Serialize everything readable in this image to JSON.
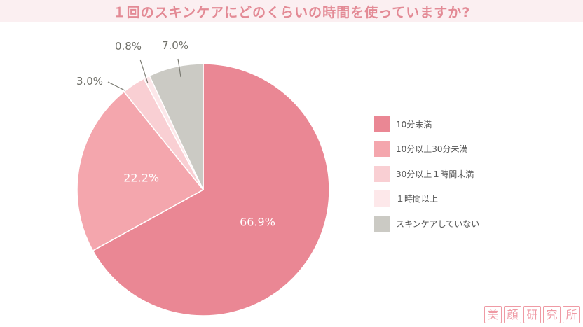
{
  "title": "１回のスキンケアにどのくらいの時間を使っていますか?",
  "chart_data": {
    "type": "pie",
    "title": "１回のスキンケアにどのくらいの時間を使っていますか?",
    "start_angle": "12 o'clock, clockwise",
    "slices": [
      {
        "label": "10分未満",
        "value": 66.9,
        "value_label": "66.9%",
        "color": "#ea8794",
        "label_placement": "inside"
      },
      {
        "label": "10分以上30分未満",
        "value": 22.2,
        "value_label": "22.2%",
        "color": "#f4a6ad",
        "label_placement": "inside"
      },
      {
        "label": "30分以上１時間未満",
        "value": 3.0,
        "value_label": "3.0%",
        "color": "#f9cfd3",
        "label_placement": "outside"
      },
      {
        "label": "１時間以上",
        "value": 0.8,
        "value_label": "0.8%",
        "color": "#fde8ea",
        "label_placement": "outside"
      },
      {
        "label": "スキンケアしていない",
        "value": 7.0,
        "value_label": "7.0%",
        "color": "#cbcac4",
        "label_placement": "outside"
      }
    ],
    "legend_position": "right"
  },
  "brand": [
    "美",
    "顔",
    "研",
    "究",
    "所"
  ],
  "colors": {
    "title_text": "#e38a95",
    "title_background": "#fbeff1",
    "brand": "#ef9aa4"
  }
}
